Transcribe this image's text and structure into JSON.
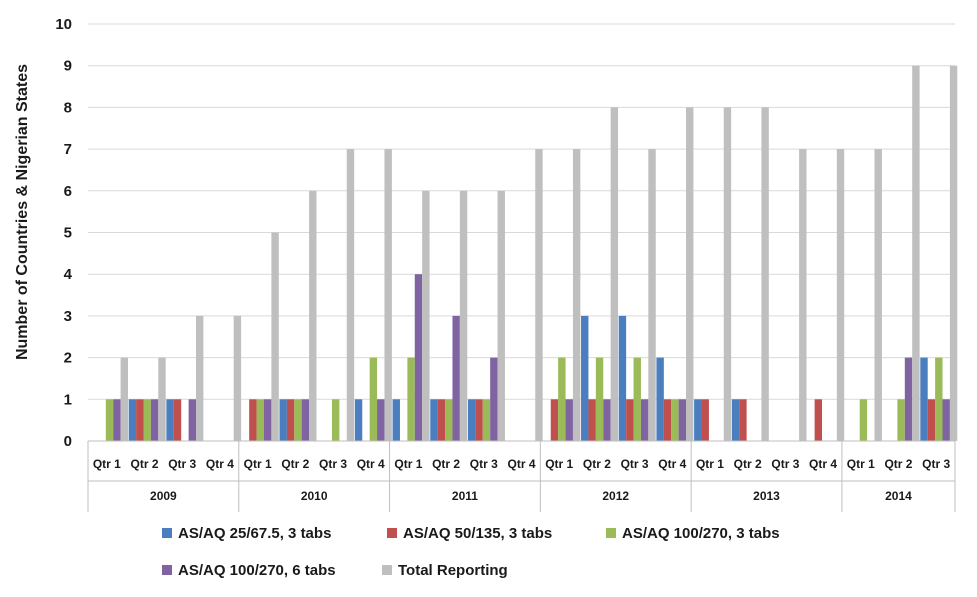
{
  "chart_data": {
    "type": "bar",
    "title": "",
    "xlabel": "",
    "ylabel": "Number of Countries & Nigerian States",
    "ylim": [
      0,
      10
    ],
    "yticks": [
      0,
      1,
      2,
      3,
      4,
      5,
      6,
      7,
      8,
      9,
      10
    ],
    "grid": true,
    "legend_position": "bottom",
    "years": [
      "2009",
      "2010",
      "2011",
      "2012",
      "2013",
      "2014"
    ],
    "year_quarter_counts": [
      4,
      4,
      4,
      4,
      4,
      3
    ],
    "categories": [
      "Qtr 1",
      "Qtr 2",
      "Qtr 3",
      "Qtr 4",
      "Qtr 1",
      "Qtr 2",
      "Qtr 3",
      "Qtr 4",
      "Qtr 1",
      "Qtr 2",
      "Qtr 3",
      "Qtr 4",
      "Qtr 1",
      "Qtr 2",
      "Qtr 3",
      "Qtr 4",
      "Qtr 1",
      "Qtr 2",
      "Qtr 3",
      "Qtr 4",
      "Qtr 1",
      "Qtr 2",
      "Qtr 3"
    ],
    "series": [
      {
        "name": "AS/AQ 25/67.5, 3 tabs",
        "color": "#4a7ebf",
        "values": [
          0,
          1,
          1,
          0,
          0,
          1,
          0,
          1,
          1,
          1,
          1,
          0,
          0,
          3,
          3,
          2,
          1,
          1,
          0,
          0,
          0,
          0,
          2
        ]
      },
      {
        "name": "AS/AQ 50/135, 3 tabs",
        "color": "#c0504d",
        "values": [
          0,
          1,
          1,
          0,
          1,
          1,
          0,
          0,
          0,
          1,
          1,
          0,
          1,
          1,
          1,
          1,
          1,
          1,
          0,
          1,
          0,
          0,
          1
        ]
      },
      {
        "name": "AS/AQ 100/270, 3 tabs",
        "color": "#9bbb59",
        "values": [
          1,
          1,
          0,
          0,
          1,
          1,
          1,
          2,
          2,
          1,
          1,
          0,
          2,
          2,
          2,
          1,
          0,
          0,
          0,
          0,
          1,
          1,
          2
        ]
      },
      {
        "name": "AS/AQ 100/270, 6 tabs",
        "color": "#8064a2",
        "values": [
          1,
          1,
          1,
          0,
          1,
          1,
          0,
          1,
          4,
          3,
          2,
          0,
          1,
          1,
          1,
          1,
          0,
          0,
          0,
          0,
          0,
          2,
          1
        ]
      },
      {
        "name": "Total Reporting",
        "color": "#bfbfbf",
        "values": [
          2,
          2,
          3,
          3,
          5,
          6,
          7,
          7,
          6,
          6,
          6,
          7,
          7,
          8,
          7,
          8,
          8,
          8,
          7,
          7,
          7,
          9,
          9
        ]
      }
    ]
  }
}
